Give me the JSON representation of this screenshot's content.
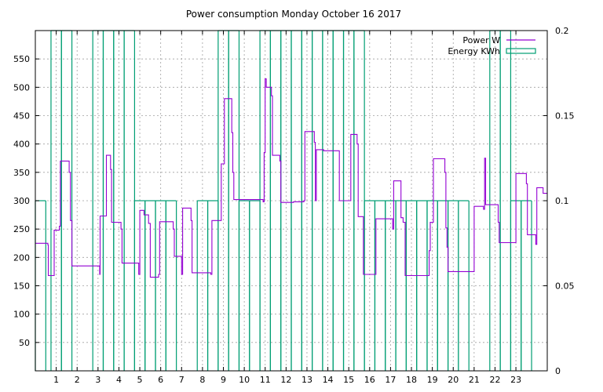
{
  "chart_data": {
    "type": "line",
    "title": "Power consumption Monday October 16 2017",
    "xlabel": "",
    "ylabel": "",
    "x_range": [
      0,
      24.5
    ],
    "y_range": [
      0,
      600
    ],
    "y2_range": [
      0,
      0.2
    ],
    "x_ticks": [
      1,
      2,
      3,
      4,
      5,
      6,
      7,
      8,
      9,
      10,
      11,
      12,
      13,
      14,
      15,
      16,
      17,
      18,
      19,
      20,
      21,
      22,
      23
    ],
    "y_ticks": [
      50,
      100,
      150,
      200,
      250,
      300,
      350,
      400,
      450,
      500,
      550
    ],
    "y2_ticks": [
      0,
      0.05,
      0.1,
      0.15,
      0.2
    ],
    "grid": true,
    "legend_position": "top-right",
    "colors": {
      "power": "#9400d3",
      "energy": "#009e73"
    },
    "series": [
      {
        "name": "Power W",
        "axis": "left",
        "style": "steps",
        "points": [
          [
            0,
            225
          ],
          [
            0.55,
            225
          ],
          [
            0.6,
            222
          ],
          [
            0.62,
            168
          ],
          [
            0.88,
            168
          ],
          [
            0.9,
            248
          ],
          [
            1.1,
            248
          ],
          [
            1.15,
            255
          ],
          [
            1.2,
            370
          ],
          [
            1.6,
            370
          ],
          [
            1.62,
            350
          ],
          [
            1.68,
            265
          ],
          [
            1.75,
            185
          ],
          [
            2.2,
            185
          ],
          [
            3.05,
            185
          ],
          [
            3.08,
            170
          ],
          [
            3.1,
            273
          ],
          [
            3.35,
            273
          ],
          [
            3.4,
            380
          ],
          [
            3.55,
            380
          ],
          [
            3.6,
            355
          ],
          [
            3.65,
            262
          ],
          [
            4.05,
            262
          ],
          [
            4.1,
            250
          ],
          [
            4.15,
            190
          ],
          [
            4.9,
            190
          ],
          [
            4.95,
            170
          ],
          [
            5.0,
            283
          ],
          [
            5.15,
            283
          ],
          [
            5.2,
            275
          ],
          [
            5.4,
            275
          ],
          [
            5.42,
            260
          ],
          [
            5.5,
            165
          ],
          [
            5.85,
            165
          ],
          [
            5.9,
            170
          ],
          [
            5.95,
            263
          ],
          [
            6.55,
            263
          ],
          [
            6.6,
            250
          ],
          [
            6.65,
            202
          ],
          [
            6.95,
            202
          ],
          [
            7.0,
            170
          ],
          [
            7.05,
            287
          ],
          [
            7.4,
            287
          ],
          [
            7.45,
            265
          ],
          [
            7.5,
            173
          ],
          [
            7.95,
            173
          ],
          [
            8.1,
            173
          ],
          [
            8.35,
            173
          ],
          [
            8.4,
            170
          ],
          [
            8.45,
            265
          ],
          [
            8.85,
            265
          ],
          [
            8.9,
            365
          ],
          [
            9.0,
            365
          ],
          [
            9.05,
            480
          ],
          [
            9.35,
            480
          ],
          [
            9.4,
            420
          ],
          [
            9.45,
            350
          ],
          [
            9.5,
            302
          ],
          [
            10.0,
            302
          ],
          [
            10.5,
            302
          ],
          [
            10.85,
            302
          ],
          [
            10.9,
            298
          ],
          [
            10.95,
            385
          ],
          [
            11.0,
            515
          ],
          [
            11.05,
            500
          ],
          [
            11.25,
            500
          ],
          [
            11.3,
            485
          ],
          [
            11.35,
            380
          ],
          [
            11.65,
            380
          ],
          [
            11.7,
            370
          ],
          [
            11.75,
            297
          ],
          [
            12.3,
            297
          ],
          [
            12.35,
            298
          ],
          [
            12.8,
            298
          ],
          [
            12.85,
            300
          ],
          [
            12.9,
            422
          ],
          [
            13.3,
            422
          ],
          [
            13.35,
            403
          ],
          [
            13.4,
            300
          ],
          [
            13.45,
            390
          ],
          [
            13.75,
            390
          ],
          [
            13.8,
            388
          ],
          [
            14.5,
            388
          ],
          [
            14.55,
            300
          ],
          [
            15.05,
            300
          ],
          [
            15.1,
            417
          ],
          [
            15.35,
            417
          ],
          [
            15.4,
            400
          ],
          [
            15.45,
            272
          ],
          [
            15.65,
            272
          ],
          [
            15.7,
            170
          ],
          [
            16.25,
            170
          ],
          [
            16.3,
            268
          ],
          [
            17.05,
            268
          ],
          [
            17.1,
            250
          ],
          [
            17.15,
            335
          ],
          [
            17.45,
            335
          ],
          [
            17.5,
            270
          ],
          [
            17.6,
            262
          ],
          [
            17.7,
            168
          ],
          [
            18.8,
            168
          ],
          [
            18.85,
            212
          ],
          [
            18.9,
            262
          ],
          [
            19.0,
            262
          ],
          [
            19.05,
            374
          ],
          [
            19.55,
            374
          ],
          [
            19.6,
            350
          ],
          [
            19.65,
            252
          ],
          [
            19.7,
            218
          ],
          [
            19.75,
            175
          ],
          [
            20.95,
            175
          ],
          [
            21.0,
            290
          ],
          [
            21.4,
            290
          ],
          [
            21.45,
            285
          ],
          [
            21.5,
            375
          ],
          [
            21.55,
            293
          ],
          [
            22.1,
            293
          ],
          [
            22.15,
            262
          ],
          [
            22.2,
            226
          ],
          [
            22.95,
            226
          ],
          [
            23.0,
            348
          ],
          [
            23.45,
            348
          ],
          [
            23.5,
            330
          ],
          [
            23.55,
            240
          ],
          [
            23.9,
            240
          ],
          [
            23.95,
            223
          ],
          [
            24.0,
            323
          ],
          [
            24.25,
            323
          ],
          [
            24.3,
            313
          ],
          [
            24.5,
            313
          ]
        ]
      },
      {
        "name": "Energy KWh",
        "axis": "right",
        "style": "bars",
        "intervals": [
          [
            0,
            0.1
          ],
          [
            0.75,
            0.2
          ],
          [
            1.25,
            0.2
          ],
          [
            2.75,
            0.2
          ],
          [
            3.25,
            0.2
          ],
          [
            3.75,
            0.2
          ],
          [
            4.25,
            0.2
          ],
          [
            4.75,
            0.1
          ],
          [
            5.25,
            0.1
          ],
          [
            5.75,
            0.1
          ],
          [
            6.25,
            0.1
          ],
          [
            7.75,
            0.1
          ],
          [
            8.25,
            0.1
          ],
          [
            8.75,
            0.2
          ],
          [
            9.25,
            0.2
          ],
          [
            9.75,
            0.1
          ],
          [
            10.25,
            0.1
          ],
          [
            10.75,
            0.2
          ],
          [
            11.25,
            0.2
          ],
          [
            11.75,
            0.2
          ],
          [
            12.25,
            0.2
          ],
          [
            12.75,
            0.2
          ],
          [
            13.25,
            0.2
          ],
          [
            13.75,
            0.2
          ],
          [
            14.25,
            0.2
          ],
          [
            14.75,
            0.2
          ],
          [
            15.25,
            0.2
          ],
          [
            15.75,
            0.1
          ],
          [
            16.25,
            0.1
          ],
          [
            16.75,
            0.1
          ],
          [
            17.25,
            0.1
          ],
          [
            17.75,
            0.1
          ],
          [
            18.25,
            0.1
          ],
          [
            18.75,
            0.1
          ],
          [
            19.25,
            0.1
          ],
          [
            19.75,
            0.1
          ],
          [
            20.25,
            0.1
          ],
          [
            21.75,
            0.2
          ],
          [
            22.25,
            0.2
          ],
          [
            22.75,
            0.1
          ],
          [
            23.25,
            0.1
          ]
        ]
      }
    ]
  }
}
